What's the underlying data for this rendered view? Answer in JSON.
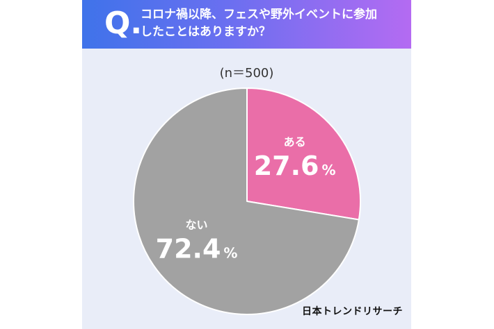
{
  "header": {
    "q_mark": "Q.",
    "question_line1": "コロナ禍以降、フェスや野外イベントに参加",
    "question_line2": "したことはありますか？"
  },
  "sample_note": "(n＝500)",
  "brand": "日本トレンドリサーチ",
  "colors": {
    "header_start": "#3f73ea",
    "header_end": "#b46bf2",
    "background": "#e9edf8",
    "yes_slice": "#ea6ea8",
    "no_slice": "#a2a2a2"
  },
  "chart_data": {
    "type": "pie",
    "title": "コロナ禍以降、フェスや野外イベントに参加したことはありますか？",
    "subtitle": "(n＝500)",
    "slices": [
      {
        "label": "ある",
        "value": 27.6,
        "value_text": "27.6",
        "unit": "%",
        "color": "#ea6ea8"
      },
      {
        "label": "ない",
        "value": 72.4,
        "value_text": "72.4",
        "unit": "%",
        "color": "#a2a2a2"
      }
    ],
    "start": "12 o'clock",
    "direction": "clockwise"
  }
}
